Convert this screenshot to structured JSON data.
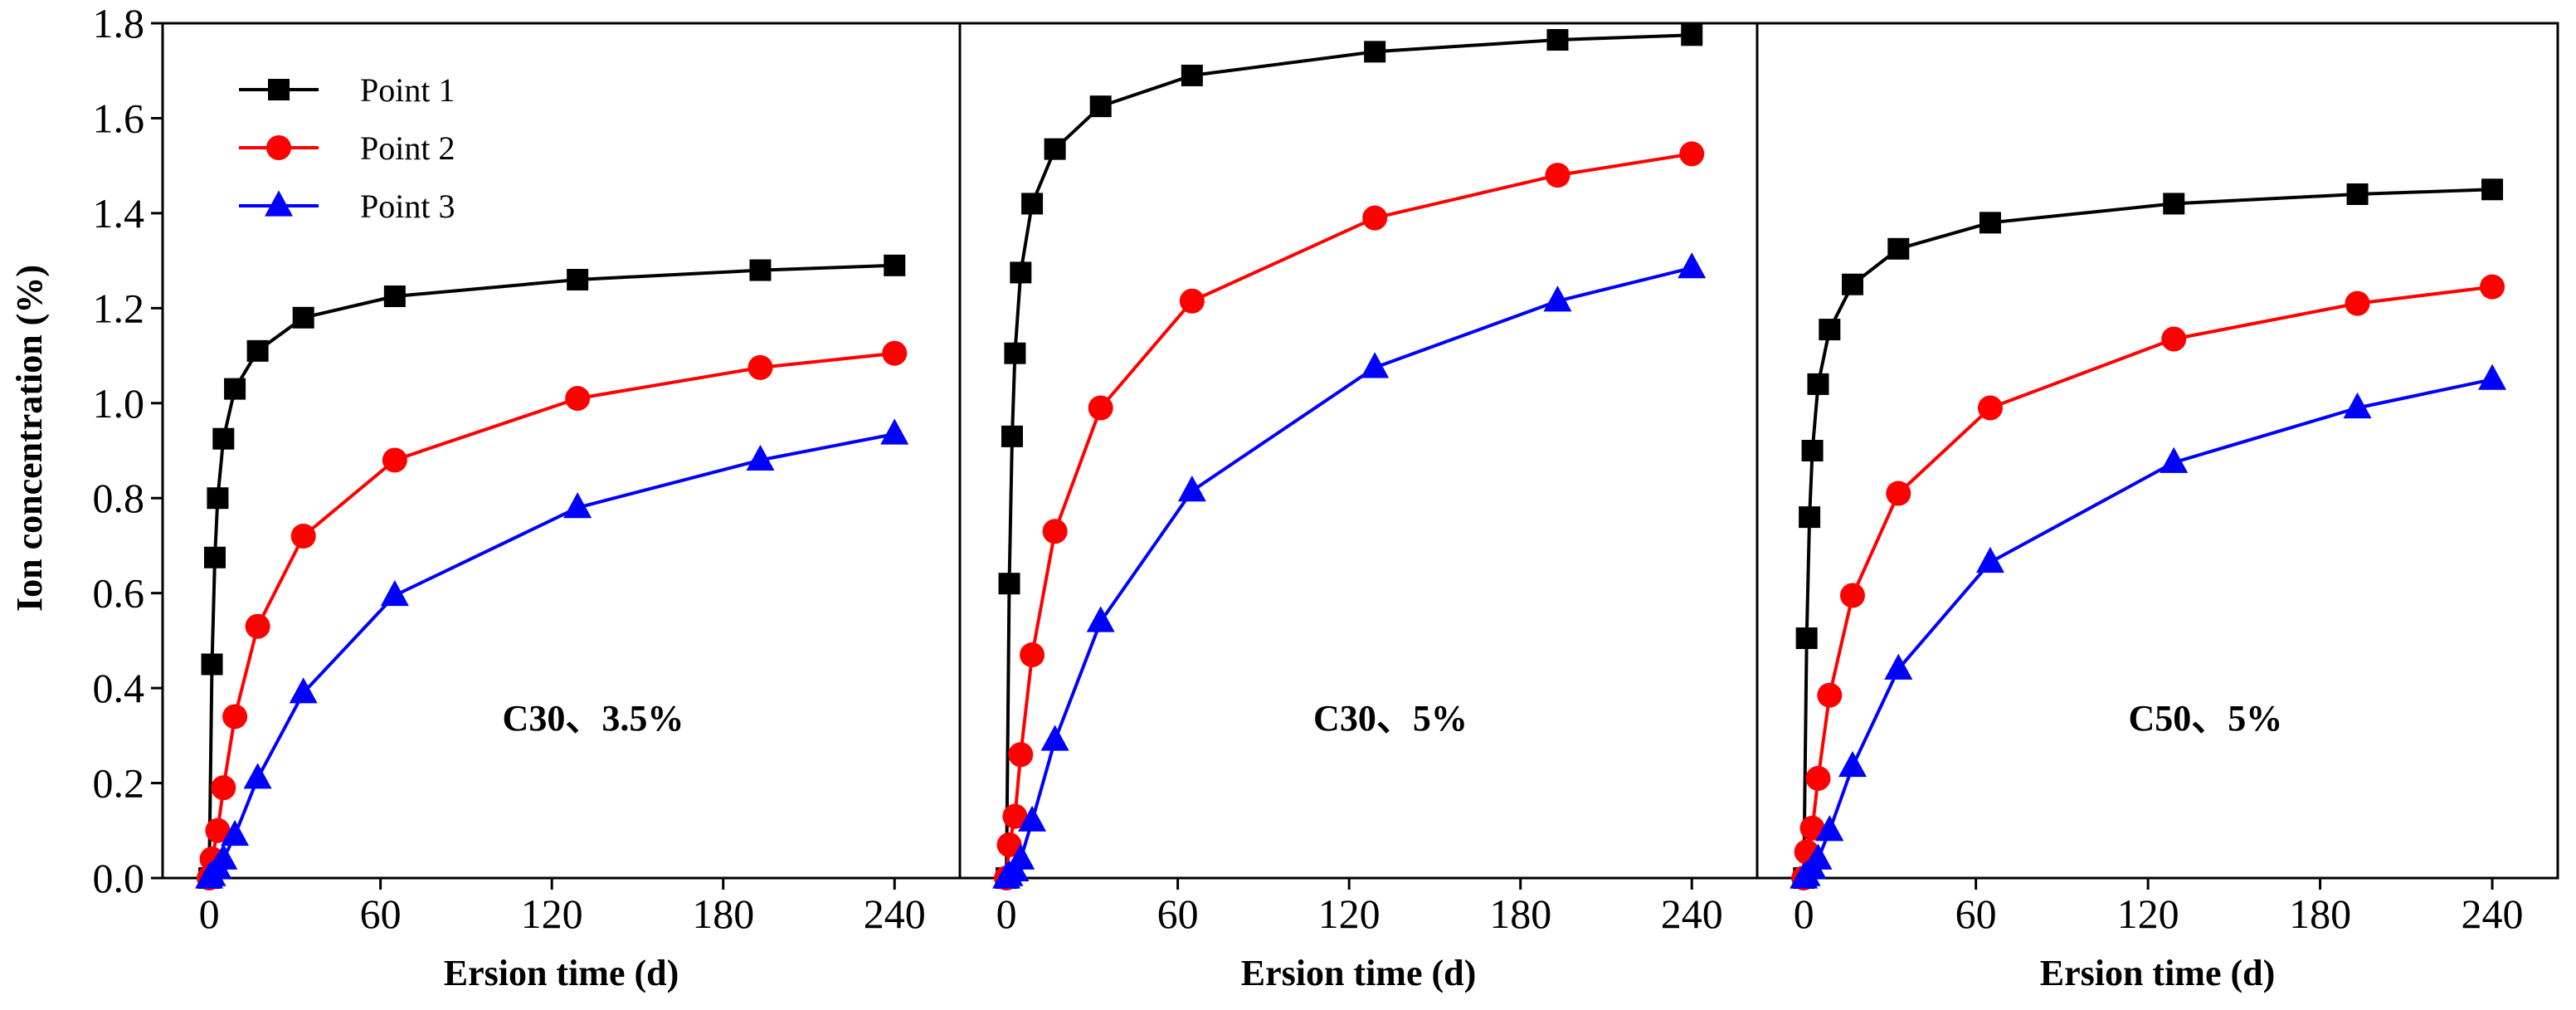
{
  "chart_data": {
    "type": "line",
    "ylabel": "Ion concentration (%)",
    "ylim": [
      0,
      1.8
    ],
    "yticks": [
      "0.0",
      "0.2",
      "0.4",
      "0.6",
      "0.8",
      "1.0",
      "1.2",
      "1.4",
      "1.6",
      "1.8"
    ],
    "xlim": [
      -7,
      253
    ],
    "xticks": [
      "0",
      "60",
      "120",
      "180",
      "240"
    ],
    "xlabel": "Ersion time (d)",
    "legend": [
      {
        "name": "Point 1",
        "color": "#000000",
        "marker": "square"
      },
      {
        "name": "Point 2",
        "color": "#ff0000",
        "marker": "circle"
      },
      {
        "name": "Point 3",
        "color": "#0000ff",
        "marker": "triangle"
      }
    ],
    "panels": [
      {
        "label": "C30、3.5%",
        "series": [
          {
            "name": "Point 1",
            "x": [
              0,
              1,
              2,
              3,
              5,
              9,
              17,
              33,
              65,
              129,
              193,
              240
            ],
            "y": [
              0,
              0.45,
              0.675,
              0.8,
              0.925,
              1.03,
              1.11,
              1.18,
              1.225,
              1.26,
              1.28,
              1.29
            ]
          },
          {
            "name": "Point 2",
            "x": [
              0,
              1,
              3,
              5,
              9,
              17,
              33,
              65,
              129,
              193,
              240
            ],
            "y": [
              0,
              0.04,
              0.1,
              0.19,
              0.34,
              0.53,
              0.72,
              0.88,
              1.01,
              1.075,
              1.105
            ]
          },
          {
            "name": "Point 3",
            "x": [
              0,
              1,
              3,
              5,
              9,
              17,
              33,
              65,
              129,
              193,
              240
            ],
            "y": [
              0,
              0.005,
              0.02,
              0.04,
              0.09,
              0.21,
              0.39,
              0.595,
              0.78,
              0.88,
              0.935
            ]
          }
        ]
      },
      {
        "label": "C30、5%",
        "series": [
          {
            "name": "Point 1",
            "x": [
              0,
              1,
              2,
              3,
              5,
              9,
              17,
              33,
              65,
              129,
              193,
              240
            ],
            "y": [
              0,
              0.62,
              0.93,
              1.105,
              1.275,
              1.42,
              1.535,
              1.625,
              1.69,
              1.74,
              1.765,
              1.775
            ]
          },
          {
            "name": "Point 2",
            "x": [
              0,
              1,
              3,
              5,
              9,
              17,
              33,
              65,
              129,
              193,
              240
            ],
            "y": [
              0,
              0.07,
              0.13,
              0.26,
              0.47,
              0.73,
              0.99,
              1.215,
              1.39,
              1.48,
              1.525
            ]
          },
          {
            "name": "Point 3",
            "x": [
              0,
              1,
              3,
              5,
              9,
              17,
              33,
              65,
              129,
              193,
              240
            ],
            "y": [
              0,
              0.005,
              0.015,
              0.04,
              0.12,
              0.29,
              0.54,
              0.815,
              1.075,
              1.215,
              1.285
            ]
          }
        ]
      },
      {
        "label": "C50、5%",
        "series": [
          {
            "name": "Point 1",
            "x": [
              0,
              1,
              2,
              3,
              5,
              9,
              17,
              33,
              65,
              129,
              193,
              240
            ],
            "y": [
              0,
              0.505,
              0.76,
              0.9,
              1.04,
              1.155,
              1.25,
              1.325,
              1.38,
              1.42,
              1.44,
              1.45
            ]
          },
          {
            "name": "Point 2",
            "x": [
              0,
              1,
              3,
              5,
              9,
              17,
              33,
              65,
              129,
              193,
              240
            ],
            "y": [
              0,
              0.055,
              0.105,
              0.21,
              0.385,
              0.595,
              0.81,
              0.99,
              1.135,
              1.21,
              1.245
            ]
          },
          {
            "name": "Point 3",
            "x": [
              0,
              1,
              3,
              5,
              9,
              17,
              33,
              65,
              129,
              193,
              240
            ],
            "y": [
              0,
              0.005,
              0.02,
              0.04,
              0.1,
              0.235,
              0.44,
              0.665,
              0.875,
              0.99,
              1.05
            ]
          }
        ]
      }
    ]
  }
}
